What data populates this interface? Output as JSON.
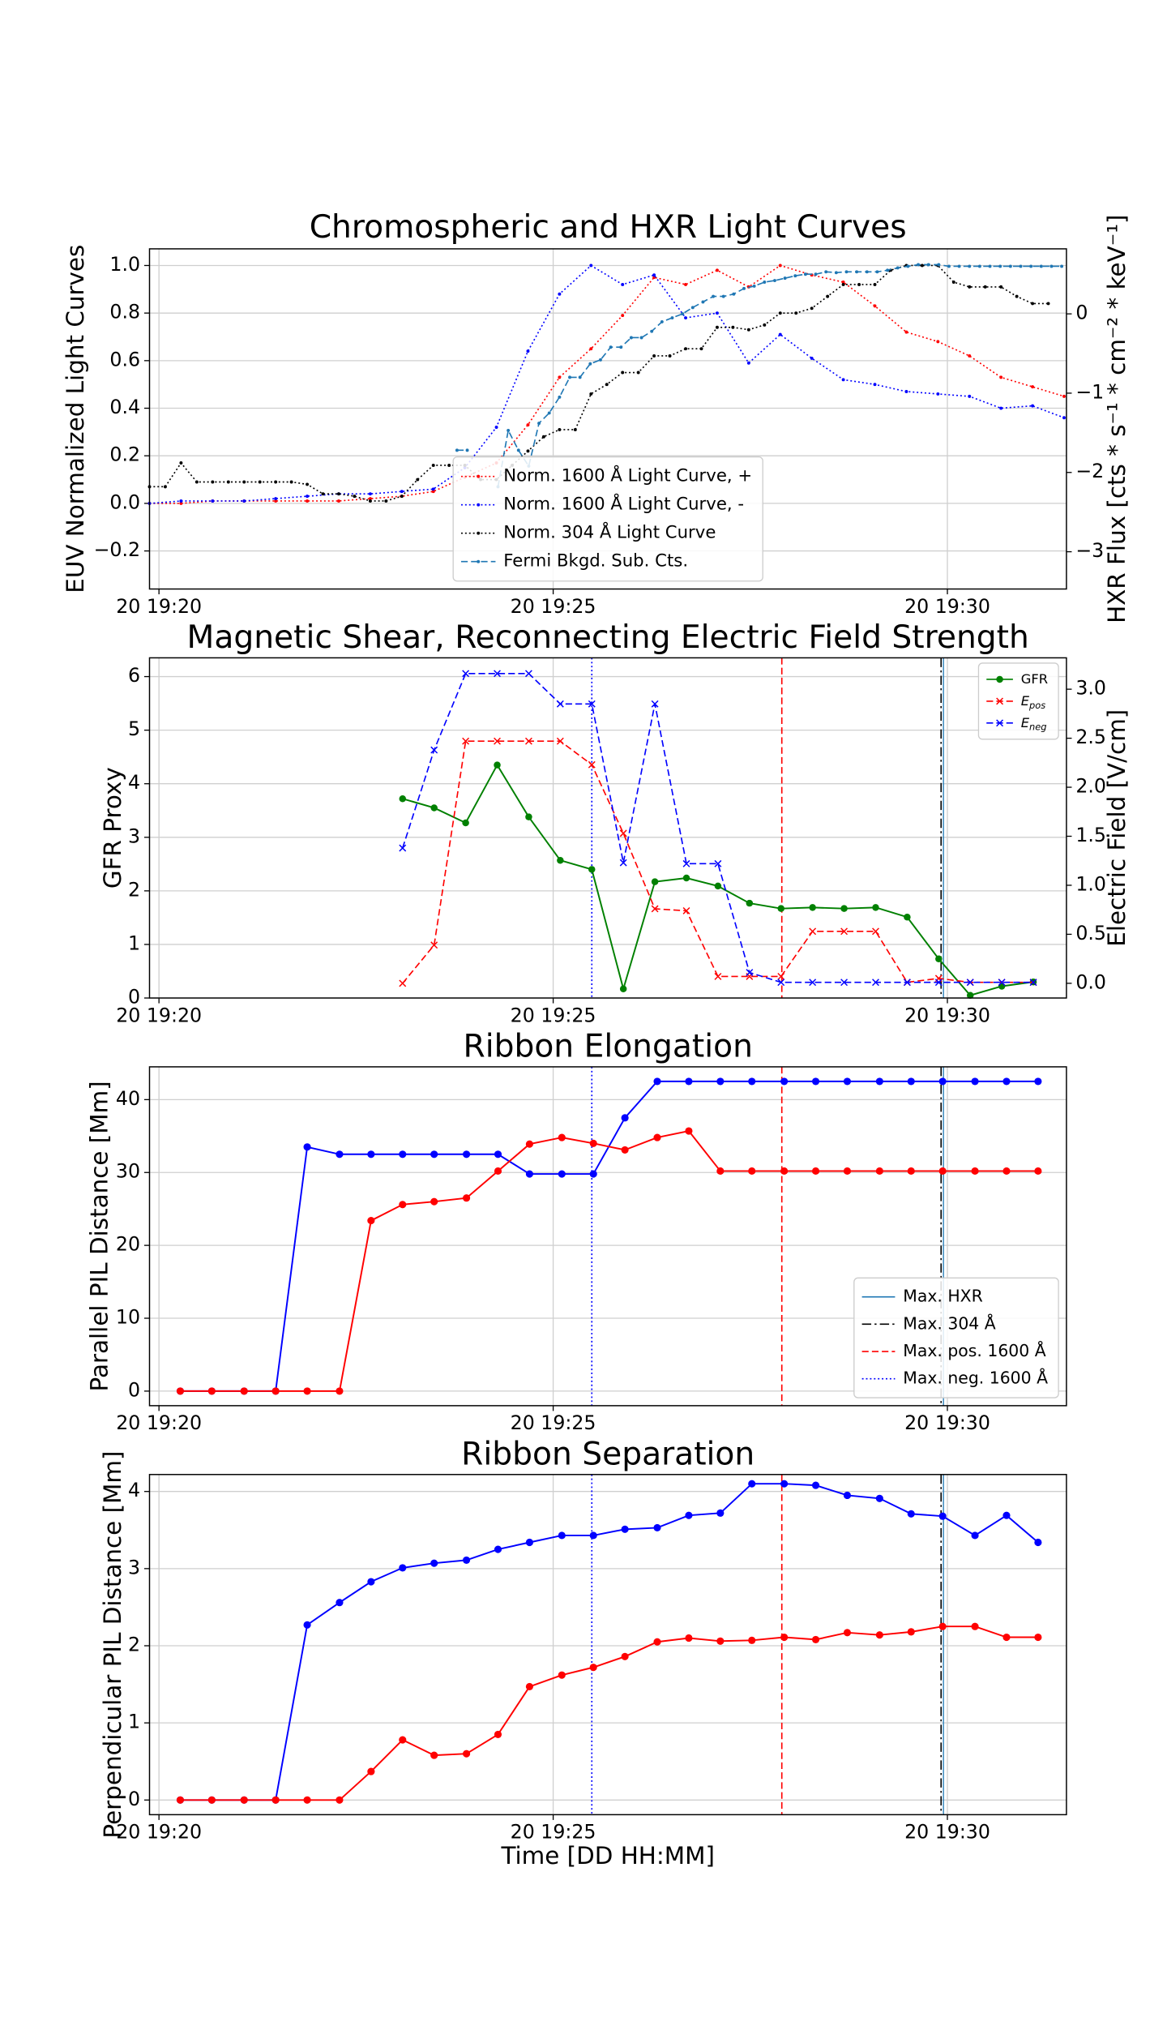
{
  "chart_data": [
    {
      "type": "line",
      "title": "Chromospheric and HXR Light Curves",
      "ylabel": "EUV Normalized Light Curves",
      "y2label": "HXR Flux [cts * s⁻¹ * cm⁻² * keV⁻¹]",
      "xlim": [
        19.88,
        31.51
      ],
      "xticks": [
        {
          "value": 20,
          "label": "20 19:20"
        },
        {
          "value": 25,
          "label": "20 19:25"
        },
        {
          "value": 30,
          "label": "20 19:30"
        }
      ],
      "ylim": [
        -0.36,
        1.07
      ],
      "yticks": [
        {
          "value": -0.2,
          "label": "−0.2"
        },
        {
          "value": 0,
          "label": "0.0"
        },
        {
          "value": 0.2,
          "label": "0.2"
        },
        {
          "value": 0.4,
          "label": "0.4"
        },
        {
          "value": 0.6,
          "label": "0.6"
        },
        {
          "value": 0.8,
          "label": "0.8"
        },
        {
          "value": 1.0,
          "label": "1.0"
        }
      ],
      "y2lim": [
        -3.47,
        0.82
      ],
      "y2ticks": [
        {
          "value": -3,
          "label": "−3"
        },
        {
          "value": -2,
          "label": "−2"
        },
        {
          "value": -1,
          "label": "−1"
        },
        0
      ],
      "grid": true,
      "legend": "lower center",
      "series": [
        {
          "name": "Norm. 1600 Å Light Curve, +",
          "color": "#ff0000",
          "linestyle": "dotted",
          "marker": "dot",
          "x": [
            19.88,
            20.28,
            20.68,
            21.08,
            21.48,
            21.88,
            22.28,
            22.68,
            23.08,
            23.48,
            23.88,
            24.28,
            24.68,
            25.08,
            25.48,
            25.88,
            26.28,
            26.68,
            27.08,
            27.48,
            27.88,
            28.28,
            28.68,
            29.08,
            29.48,
            29.88,
            30.28,
            30.68,
            31.08,
            31.48
          ],
          "values": [
            0.0,
            0.0,
            0.01,
            0.01,
            0.01,
            0.01,
            0.01,
            0.02,
            0.03,
            0.05,
            0.11,
            0.17,
            0.33,
            0.53,
            0.65,
            0.79,
            0.95,
            0.92,
            0.98,
            0.91,
            1.0,
            0.96,
            0.93,
            0.83,
            0.72,
            0.68,
            0.62,
            0.53,
            0.49,
            0.45
          ]
        },
        {
          "name": "Norm. 1600 Å Light Curve, -",
          "color": "#0000ff",
          "linestyle": "dotted",
          "marker": "dot",
          "x": [
            19.88,
            20.28,
            20.68,
            21.08,
            21.48,
            21.88,
            22.28,
            22.68,
            23.08,
            23.48,
            23.88,
            24.28,
            24.68,
            25.08,
            25.48,
            25.88,
            26.28,
            26.68,
            27.08,
            27.48,
            27.88,
            28.28,
            28.68,
            29.08,
            29.48,
            29.88,
            30.28,
            30.68,
            31.08,
            31.48
          ],
          "values": [
            0.0,
            0.01,
            0.01,
            0.01,
            0.02,
            0.03,
            0.04,
            0.04,
            0.05,
            0.06,
            0.15,
            0.32,
            0.64,
            0.88,
            1.0,
            0.92,
            0.96,
            0.78,
            0.8,
            0.59,
            0.71,
            0.61,
            0.52,
            0.5,
            0.47,
            0.46,
            0.45,
            0.4,
            0.41,
            0.36
          ]
        },
        {
          "name": "Norm. 304 Å Light Curve",
          "color": "#000000",
          "linestyle": "dotted",
          "marker": "dot",
          "x": [
            19.88,
            20.08,
            20.28,
            20.48,
            20.68,
            20.88,
            21.08,
            21.28,
            21.48,
            21.68,
            21.88,
            22.08,
            22.28,
            22.48,
            22.68,
            22.88,
            23.08,
            23.28,
            23.48,
            23.68,
            23.88,
            24.08,
            24.28,
            24.48,
            24.68,
            24.88,
            25.08,
            25.28,
            25.48,
            25.68,
            25.88,
            26.08,
            26.28,
            26.48,
            26.68,
            26.88,
            27.08,
            27.28,
            27.48,
            27.68,
            27.88,
            28.08,
            28.28,
            28.48,
            28.68,
            28.88,
            29.08,
            29.28,
            29.48,
            29.68,
            29.88,
            30.08,
            30.28,
            30.48,
            30.68,
            30.88,
            31.08,
            31.28
          ],
          "values": [
            0.07,
            0.07,
            0.17,
            0.09,
            0.09,
            0.09,
            0.09,
            0.09,
            0.09,
            0.09,
            0.08,
            0.04,
            0.04,
            0.03,
            0.01,
            0.01,
            0.03,
            0.1,
            0.16,
            0.16,
            0.16,
            0.1,
            0.1,
            0.16,
            0.22,
            0.28,
            0.31,
            0.31,
            0.46,
            0.5,
            0.55,
            0.55,
            0.62,
            0.62,
            0.65,
            0.65,
            0.74,
            0.74,
            0.73,
            0.75,
            0.8,
            0.8,
            0.82,
            0.87,
            0.92,
            0.92,
            0.92,
            0.98,
            1.0,
            1.0,
            1.0,
            0.93,
            0.91,
            0.91,
            0.91,
            0.87,
            0.84,
            0.84
          ]
        },
        {
          "name": "Fermi Bkgd. Sub. Cts.",
          "color": "#1f77b4",
          "linestyle": "dashed",
          "marker": "dot",
          "axis": "y2",
          "x": [
            23.78,
            23.91,
            24.04,
            24.17,
            24.3,
            24.43,
            24.56,
            24.69,
            24.82,
            24.95,
            25.08,
            25.21,
            25.34,
            25.47,
            25.6,
            25.73,
            25.86,
            25.99,
            26.12,
            26.25,
            26.38,
            26.51,
            26.64,
            26.77,
            26.9,
            27.03,
            27.16,
            27.29,
            27.42,
            27.55,
            27.68,
            27.81,
            27.94,
            28.07,
            28.2,
            28.33,
            28.46,
            28.59,
            28.72,
            28.85,
            28.98,
            29.11,
            29.24,
            29.37,
            29.5,
            29.63,
            29.76,
            29.89,
            30.02,
            30.15,
            30.28,
            30.41,
            30.54,
            30.67,
            30.8,
            30.93,
            31.06,
            31.19,
            31.32,
            31.45
          ],
          "values": [
            -1.72,
            -1.72,
            null,
            null,
            -2.18,
            -1.47,
            -1.72,
            -1.92,
            -1.38,
            -1.25,
            -1.05,
            -0.8,
            -0.8,
            -0.63,
            -0.58,
            -0.42,
            -0.42,
            -0.3,
            -0.3,
            -0.22,
            -0.1,
            -0.05,
            0,
            0.08,
            0.15,
            0.22,
            0.22,
            0.25,
            0.32,
            0.35,
            0.4,
            0.42,
            0.45,
            0.48,
            0.5,
            0.5,
            0.53,
            0.52,
            0.53,
            0.53,
            0.53,
            0.53,
            0.55,
            0.58,
            0.6,
            0.62,
            0.62,
            0.62,
            0.6,
            0.6,
            0.6,
            0.6,
            0.6,
            0.6,
            0.6,
            0.6,
            0.6,
            0.6,
            0.6,
            0.6
          ]
        }
      ]
    },
    {
      "type": "line",
      "title": "Magnetic Shear, Reconnecting Electric Field Strength",
      "ylabel": "GFR Proxy",
      "y2label": "Electric Field [V/cm]",
      "xlim": [
        19.88,
        31.51
      ],
      "xticks": [
        {
          "value": 20,
          "label": "20 19:20"
        },
        {
          "value": 25,
          "label": "20 19:25"
        },
        {
          "value": 30,
          "label": "20 19:30"
        }
      ],
      "ylim": [
        0,
        6.35
      ],
      "yticks": [
        0,
        1,
        2,
        3,
        4,
        5,
        6
      ],
      "y2lim": [
        -0.15,
        3.32
      ],
      "y2ticks": [
        {
          "value": 0,
          "label": "0.0"
        },
        {
          "value": 0.5,
          "label": "0.5"
        },
        {
          "value": 1,
          "label": "1.0"
        },
        {
          "value": 1.5,
          "label": "1.5"
        },
        {
          "value": 2,
          "label": "2.0"
        },
        {
          "value": 2.5,
          "label": "2.5"
        },
        {
          "value": 3,
          "label": "3.0"
        }
      ],
      "grid": true,
      "legend": "upper right",
      "event_lines": true,
      "x": [
        23.09,
        23.49,
        23.89,
        24.29,
        24.69,
        25.09,
        25.49,
        25.89,
        26.29,
        26.69,
        27.09,
        27.49,
        27.89,
        28.29,
        28.69,
        29.09,
        29.49,
        29.89,
        30.29,
        30.69,
        31.09
      ],
      "series": [
        {
          "name": "GFR",
          "color": "#008000",
          "linestyle": "solid",
          "marker": "circle",
          "values": [
            3.72,
            3.55,
            3.27,
            4.35,
            3.38,
            2.57,
            2.4,
            0.17,
            2.17,
            2.24,
            2.09,
            1.77,
            1.67,
            1.69,
            1.67,
            1.69,
            1.51,
            0.73,
            0.05,
            0.22,
            0.3
          ]
        },
        {
          "name": "E",
          "subscript": "pos",
          "color": "#ff0000",
          "linestyle": "dashed",
          "marker": "x",
          "axis": "y2",
          "values": [
            0.0,
            0.39,
            2.47,
            2.47,
            2.47,
            2.47,
            2.23,
            1.53,
            0.76,
            0.74,
            0.07,
            0.07,
            0.07,
            0.53,
            0.53,
            0.53,
            0.01,
            0.05,
            0.01,
            0.01,
            0.01
          ]
        },
        {
          "name": "E",
          "subscript": "neg",
          "color": "#0000ff",
          "linestyle": "dashed",
          "marker": "x",
          "axis": "y2",
          "values": [
            1.38,
            2.38,
            3.16,
            3.16,
            3.16,
            2.85,
            2.85,
            1.23,
            2.85,
            1.22,
            1.22,
            0.11,
            0.01,
            0.01,
            0.01,
            0.01,
            0.01,
            0.01,
            0.01,
            0.01,
            0.01
          ]
        }
      ]
    },
    {
      "type": "line",
      "title": "Ribbon Elongation",
      "ylabel": "Parallel PIL Distance [Mm]",
      "xlim": [
        19.88,
        31.51
      ],
      "xticks": [
        {
          "value": 20,
          "label": "20 19:20"
        },
        {
          "value": 25,
          "label": "20 19:25"
        },
        {
          "value": 30,
          "label": "20 19:30"
        }
      ],
      "ylim": [
        -2,
        44.5
      ],
      "yticks": [
        0,
        10,
        20,
        30,
        40
      ],
      "grid": true,
      "legend": "lower right",
      "event_lines": true,
      "vlines": [
        {
          "name": "Max. HXR",
          "color": "#1f77b4",
          "linestyle": "solid",
          "x": 29.95
        },
        {
          "name": "Max. 304 Å",
          "color": "#000000",
          "linestyle": "dashdot",
          "x": 29.92
        },
        {
          "name": "Max. pos. 1600 Å",
          "color": "#ff0000",
          "linestyle": "dashed",
          "x": 27.9
        },
        {
          "name": "Max. neg. 1600 Å",
          "color": "#0000ff",
          "linestyle": "dotted",
          "x": 25.49
        }
      ],
      "x": [
        20.27,
        20.67,
        21.08,
        21.48,
        21.88,
        22.29,
        22.69,
        23.09,
        23.49,
        23.9,
        24.3,
        24.7,
        25.11,
        25.51,
        25.91,
        26.32,
        26.72,
        27.12,
        27.52,
        27.93,
        28.33,
        28.73,
        29.14,
        29.54,
        29.94,
        30.35,
        30.75,
        31.15
      ],
      "series": [
        {
          "color": "#0000ff",
          "linestyle": "solid",
          "marker": "circle",
          "values": [
            0,
            0,
            0,
            0,
            33.5,
            32.5,
            32.5,
            32.5,
            32.5,
            32.5,
            32.5,
            29.8,
            29.8,
            29.8,
            37.5,
            42.5,
            42.5,
            42.5,
            42.5,
            42.5,
            42.5,
            42.5,
            42.5,
            42.5,
            42.5,
            42.5,
            42.5,
            42.5
          ]
        },
        {
          "color": "#ff0000",
          "linestyle": "solid",
          "marker": "circle",
          "values": [
            0,
            0,
            0,
            0,
            0,
            0,
            23.4,
            25.6,
            26.0,
            26.5,
            30.2,
            33.9,
            34.8,
            34.0,
            33.1,
            34.8,
            35.7,
            30.2,
            30.2,
            30.2,
            30.2,
            30.2,
            30.2,
            30.2,
            30.2,
            30.2,
            30.2,
            30.2
          ]
        }
      ]
    },
    {
      "type": "line",
      "title": "Ribbon Separation",
      "ylabel": "Perpendicular PIL Distance [Mm]",
      "xlabel": "Time [DD HH:MM]",
      "xlim": [
        19.88,
        31.51
      ],
      "xticks": [
        {
          "value": 20,
          "label": "20 19:20"
        },
        {
          "value": 25,
          "label": "20 19:25"
        },
        {
          "value": 30,
          "label": "20 19:30"
        }
      ],
      "ylim": [
        -0.19,
        4.22
      ],
      "yticks": [
        0,
        1,
        2,
        3,
        4
      ],
      "grid": true,
      "event_lines": true,
      "x": [
        20.27,
        20.67,
        21.08,
        21.48,
        21.88,
        22.29,
        22.69,
        23.09,
        23.49,
        23.9,
        24.3,
        24.7,
        25.11,
        25.51,
        25.91,
        26.32,
        26.72,
        27.12,
        27.52,
        27.93,
        28.33,
        28.73,
        29.14,
        29.54,
        29.94,
        30.35,
        30.75,
        31.15
      ],
      "series": [
        {
          "color": "#0000ff",
          "linestyle": "solid",
          "marker": "circle",
          "values": [
            0,
            0,
            0,
            0,
            2.27,
            2.56,
            2.83,
            3.01,
            3.07,
            3.11,
            3.25,
            3.34,
            3.43,
            3.43,
            3.51,
            3.53,
            3.69,
            3.72,
            4.1,
            4.1,
            4.08,
            3.95,
            3.91,
            3.71,
            3.68,
            3.43,
            3.69,
            3.34
          ]
        },
        {
          "color": "#ff0000",
          "linestyle": "solid",
          "marker": "circle",
          "values": [
            0,
            0,
            0,
            0,
            0,
            0,
            0.37,
            0.78,
            0.58,
            0.6,
            0.85,
            1.47,
            1.62,
            1.72,
            1.86,
            2.05,
            2.1,
            2.06,
            2.07,
            2.11,
            2.08,
            2.17,
            2.14,
            2.18,
            2.25,
            2.25,
            2.11,
            2.11
          ]
        }
      ]
    }
  ]
}
